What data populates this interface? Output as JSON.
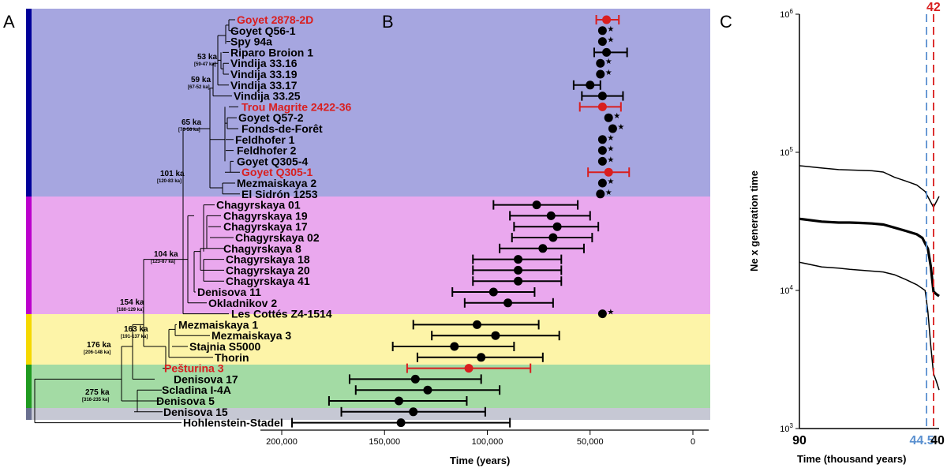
{
  "panel_letters": {
    "a": "A",
    "b": "B",
    "c": "C"
  },
  "colors": {
    "purple_band": "#a6a6e0",
    "pink_band": "#eaa8ee",
    "yellow_band": "#fdf4a8",
    "green_band": "#a3dba4",
    "gray_band": "#c6c8d4",
    "purple_bar": "#000099",
    "pink_bar": "#bb00cc",
    "yellow_bar": "#f5d800",
    "green_bar": "#1f9a20",
    "gray_bar": "#6a7090",
    "highlight": "#d91e1e",
    "dashed_blue": "#5a90d0"
  },
  "samples": [
    {
      "name": "Goyet 2878-2D",
      "group": "purple",
      "red": true,
      "age": 42000,
      "lo": 36000,
      "hi": 47000,
      "star": false
    },
    {
      "name": "Goyet Q56-1",
      "group": "purple",
      "red": false,
      "age": 44000,
      "star": true
    },
    {
      "name": "Spy 94a",
      "group": "purple",
      "red": false,
      "age": 44000,
      "star": true
    },
    {
      "name": "Riparo Broion 1",
      "group": "purple",
      "red": false,
      "age": 42000,
      "lo": 32000,
      "hi": 48000,
      "star": false
    },
    {
      "name": "Vindija 33.16",
      "group": "purple",
      "red": false,
      "age": 45000,
      "star": true
    },
    {
      "name": "Vindija 33.19",
      "group": "purple",
      "red": false,
      "age": 45000,
      "star": true
    },
    {
      "name": "Vindija 33.17",
      "group": "purple",
      "red": false,
      "age": 50000,
      "lo": 45000,
      "hi": 58000,
      "star": false
    },
    {
      "name": "Vindija 33.25",
      "group": "purple",
      "red": false,
      "age": 44000,
      "lo": 34000,
      "hi": 54000,
      "star": false
    },
    {
      "name": "Trou Magrite 2422-36",
      "group": "purple",
      "red": true,
      "age": 44000,
      "lo": 35000,
      "hi": 55000,
      "star": false
    },
    {
      "name": "Goyet Q57-2",
      "group": "purple",
      "red": false,
      "age": 41000,
      "star": true
    },
    {
      "name": "Fonds-de-Forêt",
      "group": "purple",
      "red": false,
      "age": 39000,
      "star": true
    },
    {
      "name": "Feldhofer 1",
      "group": "purple",
      "red": false,
      "age": 44000,
      "star": true
    },
    {
      "name": "Feldhofer 2",
      "group": "purple",
      "red": false,
      "age": 44000,
      "star": true
    },
    {
      "name": "Goyet Q305-4",
      "group": "purple",
      "red": false,
      "age": 44000,
      "star": true
    },
    {
      "name": "Goyet Q305-1",
      "group": "purple",
      "red": true,
      "age": 41000,
      "lo": 31000,
      "hi": 51000,
      "star": false
    },
    {
      "name": "Mezmaiskaya 2",
      "group": "purple",
      "red": false,
      "age": 44000,
      "star": true
    },
    {
      "name": "El Sidrón 1253",
      "group": "purple",
      "red": false,
      "age": 45000,
      "star": true
    },
    {
      "name": "Chagyrskaya 01",
      "group": "pink",
      "red": false,
      "age": 76000,
      "lo": 56000,
      "hi": 97000,
      "star": false
    },
    {
      "name": "Chagyrskaya 19",
      "group": "pink",
      "red": false,
      "age": 69000,
      "lo": 50000,
      "hi": 89000,
      "star": false
    },
    {
      "name": "Chagyrskaya 17",
      "group": "pink",
      "red": false,
      "age": 66000,
      "lo": 46000,
      "hi": 87000,
      "star": false
    },
    {
      "name": "Chagyrskaya 02",
      "group": "pink",
      "red": false,
      "age": 68000,
      "lo": 49000,
      "hi": 88000,
      "star": false
    },
    {
      "name": "Chagyrskaya 8",
      "group": "pink",
      "red": false,
      "age": 73000,
      "lo": 53000,
      "hi": 94000,
      "star": false
    },
    {
      "name": "Chagyrskaya 18",
      "group": "pink",
      "red": false,
      "age": 85000,
      "lo": 64000,
      "hi": 107000,
      "star": false
    },
    {
      "name": "Chagyrskaya 20",
      "group": "pink",
      "red": false,
      "age": 85000,
      "lo": 64000,
      "hi": 107000,
      "star": false
    },
    {
      "name": "Chagyrskaya 41",
      "group": "pink",
      "red": false,
      "age": 85000,
      "lo": 64000,
      "hi": 107000,
      "star": false
    },
    {
      "name": "Denisova 11",
      "group": "pink",
      "red": false,
      "age": 97000,
      "lo": 77000,
      "hi": 117000,
      "star": false
    },
    {
      "name": "Okladnikov 2",
      "group": "pink",
      "red": false,
      "age": 90000,
      "lo": 68000,
      "hi": 111000,
      "star": false
    },
    {
      "name": "Les Cottés Z4-1514",
      "group": "pink",
      "red": false,
      "age": 44000,
      "star": true
    },
    {
      "name": "Mezmaiskaya 1",
      "group": "yellow",
      "red": false,
      "age": 105000,
      "lo": 75000,
      "hi": 136000,
      "star": false
    },
    {
      "name": "Mezmaiskaya 3",
      "group": "yellow",
      "red": false,
      "age": 96000,
      "lo": 65000,
      "hi": 127000,
      "star": false
    },
    {
      "name": "Stajnia S5000",
      "group": "yellow",
      "red": false,
      "age": 116000,
      "lo": 87000,
      "hi": 146000,
      "star": false
    },
    {
      "name": "Thorin",
      "group": "yellow",
      "red": false,
      "age": 103000,
      "lo": 73000,
      "hi": 134000,
      "star": false
    },
    {
      "name": "Pešturina 3",
      "group": "yellow",
      "red": true,
      "age": 109000,
      "lo": 79000,
      "hi": 139000,
      "star": false
    },
    {
      "name": "Denisova 17",
      "group": "green",
      "red": false,
      "age": 135000,
      "lo": 103000,
      "hi": 167000,
      "star": false
    },
    {
      "name": "Scladina I-4A",
      "group": "green",
      "red": false,
      "age": 129000,
      "lo": 94000,
      "hi": 164000,
      "star": false
    },
    {
      "name": "Denisova 5",
      "group": "green",
      "red": false,
      "age": 143000,
      "lo": 110000,
      "hi": 177000,
      "star": false
    },
    {
      "name": "Denisova 15",
      "group": "green",
      "red": false,
      "age": 136000,
      "lo": 101000,
      "hi": 171000,
      "star": false
    },
    {
      "name": "Hohlenstein-Stadel",
      "group": "gray",
      "red": false,
      "age": 142000,
      "lo": 89000,
      "hi": 195000,
      "star": false
    }
  ],
  "nodes": [
    {
      "age": "53 ka",
      "ci": "[59-47 ka]"
    },
    {
      "age": "59 ka",
      "ci": "[67-52 ka]"
    },
    {
      "age": "65 ka",
      "ci": "[76-56 ka]"
    },
    {
      "age": "101 ka",
      "ci": "[120-83 ka]"
    },
    {
      "age": "104 ka",
      "ci": "[123-87 ka]"
    },
    {
      "age": "154 ka",
      "ci": "[180-129 ka]"
    },
    {
      "age": "163 ka",
      "ci": "[191-137 ka]"
    },
    {
      "age": "176 ka",
      "ci": "[206-148 ka]"
    },
    {
      "age": "275 ka",
      "ci": "[316-235 ka]"
    }
  ],
  "star_glyph": "★",
  "chart_data": [
    {
      "type": "scatter",
      "panel": "B",
      "xlabel": "Time (years)",
      "xlim": [
        200000,
        0
      ],
      "xticks": [
        200000,
        150000,
        100000,
        50000,
        0
      ],
      "tick_labels": [
        "200,000",
        "150,000",
        "100,000",
        "50,000",
        "0"
      ],
      "note": "points with error bars are sample age estimates, one per sample row"
    },
    {
      "type": "line",
      "panel": "C",
      "xlabel": "Time (thousand years)",
      "ylabel": "Ne x generation time",
      "yscale": "log",
      "ylim": [
        1000,
        1000000
      ],
      "ytick_exponents": [
        "6",
        "5",
        "4",
        "3"
      ],
      "xtick_left": "90",
      "xtick_right": "40",
      "vline_blue": "44.5",
      "vline_red": "42",
      "series": [
        {
          "x": [
            90,
            82,
            76,
            72,
            68,
            64,
            60,
            56,
            52,
            48,
            45,
            42,
            40
          ],
          "y": [
            80000,
            77000,
            75000,
            74500,
            74000,
            73500,
            72000,
            66000,
            62000,
            58000,
            52000,
            40000,
            48000
          ]
        },
        {
          "x": [
            90,
            82,
            76,
            72,
            68,
            64,
            60,
            56,
            52,
            48,
            46,
            44,
            43,
            42,
            41,
            40
          ],
          "y": [
            33000,
            31500,
            31000,
            31000,
            30800,
            30500,
            30000,
            28500,
            27000,
            25500,
            24000,
            20000,
            15000,
            9800,
            9400,
            9100
          ]
        },
        {
          "x": [
            90,
            82,
            76,
            72,
            68,
            64,
            60,
            56,
            52,
            48,
            45,
            44,
            43,
            42,
            41,
            40
          ],
          "y": [
            16000,
            14800,
            14500,
            14200,
            14000,
            13800,
            13600,
            13000,
            12000,
            11000,
            10000,
            7000,
            4000,
            2500,
            2200,
            1900
          ]
        }
      ]
    }
  ]
}
